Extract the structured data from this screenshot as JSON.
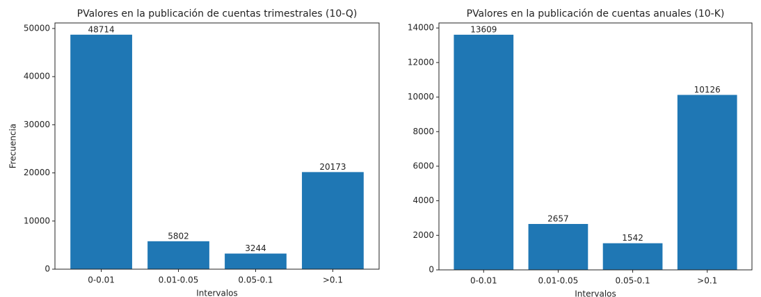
{
  "chart_data": [
    {
      "type": "bar",
      "title": "PValores en la publicación de cuentas trimestrales (10-Q)",
      "x_label": "Intervalos",
      "y_label": "Frecuencia",
      "categories": [
        "0-0.01",
        "0.01-0.05",
        "0.05-0.1",
        ">0.1"
      ],
      "values": [
        48714,
        5802,
        3244,
        20173
      ],
      "color": "#1f77b4",
      "ylim": [
        0,
        51150
      ],
      "yticks": [
        0,
        10000,
        20000,
        30000,
        40000,
        50000
      ]
    },
    {
      "type": "bar",
      "title": "PValores en la publicación de cuentas anuales (10-K)",
      "x_label": "Intervalos",
      "categories": [
        "0-0.01",
        "0.01-0.05",
        "0.05-0.1",
        ">0.1"
      ],
      "values": [
        13609,
        2657,
        1542,
        10126
      ],
      "color": "#1f77b4",
      "ylim": [
        0,
        14290
      ],
      "yticks": [
        0,
        2000,
        4000,
        6000,
        8000,
        10000,
        12000,
        14000
      ]
    }
  ]
}
